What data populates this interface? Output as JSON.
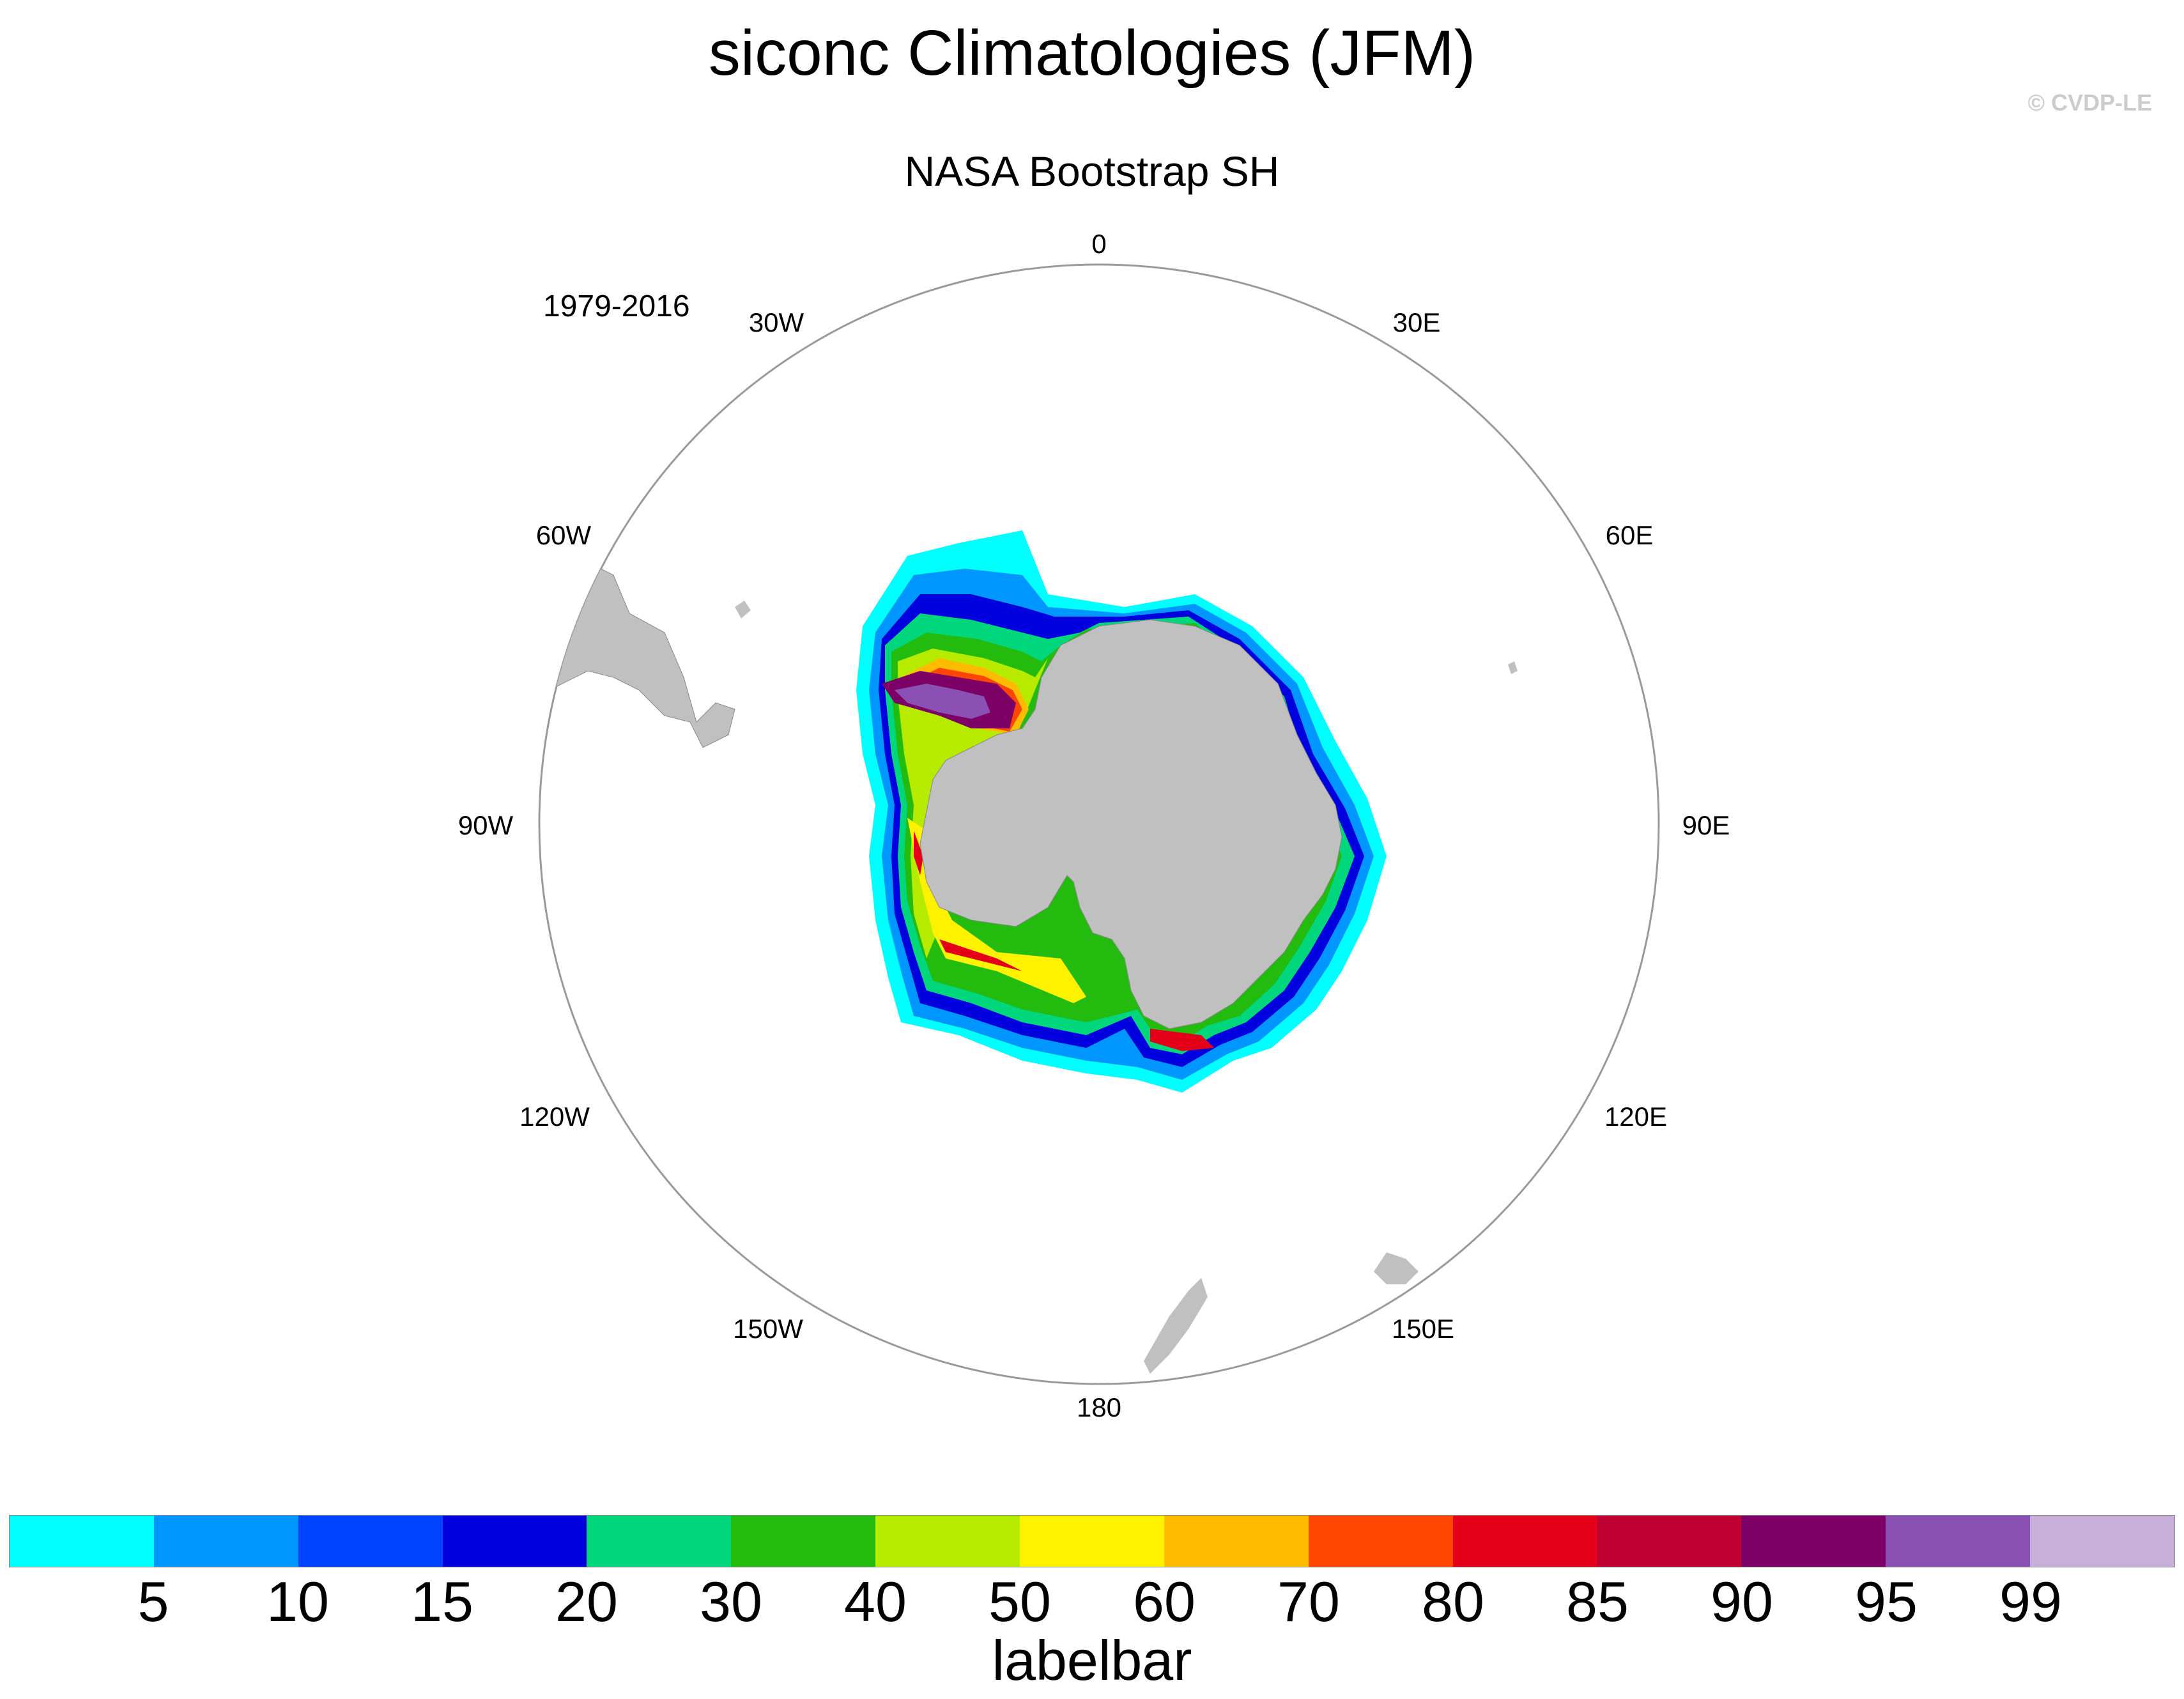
{
  "title": "siconc Climatologies (JFM)",
  "copyright": "© CVDP-LE",
  "subtitle": "NASA Bootstrap SH",
  "period": "1979-2016",
  "map": {
    "projection": "south-polar-stereographic",
    "land_color": "#c0c0c0",
    "longitude_labels": [
      "0",
      "30E",
      "60E",
      "90E",
      "120E",
      "150E",
      "180",
      "150W",
      "120W",
      "90W",
      "60W",
      "30W"
    ]
  },
  "labelbar": {
    "title": "labelbar",
    "colors": [
      "#00ffff",
      "#0096ff",
      "#0043ff",
      "#0000de",
      "#00d77d",
      "#23bb0e",
      "#b6eb00",
      "#fff200",
      "#ffbb00",
      "#ff4600",
      "#e5001a",
      "#bf0033",
      "#7d0066",
      "#8b50b4",
      "#c7afda"
    ],
    "tick_labels": [
      "5",
      "10",
      "15",
      "20",
      "30",
      "40",
      "50",
      "60",
      "70",
      "80",
      "85",
      "90",
      "95",
      "99"
    ]
  }
}
